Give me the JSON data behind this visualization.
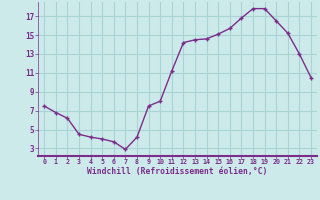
{
  "x": [
    0,
    1,
    2,
    3,
    4,
    5,
    6,
    7,
    8,
    9,
    10,
    11,
    12,
    13,
    14,
    15,
    16,
    17,
    18,
    19,
    20,
    21,
    22,
    23
  ],
  "y": [
    7.5,
    6.8,
    6.2,
    4.5,
    4.2,
    4.0,
    3.7,
    2.9,
    4.2,
    7.5,
    8.0,
    11.2,
    14.2,
    14.5,
    14.6,
    15.1,
    15.7,
    16.8,
    17.8,
    17.8,
    16.5,
    15.2,
    13.0,
    10.5
  ],
  "line_color": "#7B2D8B",
  "marker": "+",
  "bg_color": "#cdeaea",
  "grid_color": "#a8d4d4",
  "xlabel": "Windchill (Refroidissement éolien,°C)",
  "ylabel_ticks": [
    3,
    5,
    7,
    9,
    11,
    13,
    15,
    17
  ],
  "xlim": [
    -0.5,
    23.5
  ],
  "ylim": [
    2.2,
    18.5
  ],
  "xtick_labels": [
    "0",
    "1",
    "2",
    "3",
    "4",
    "5",
    "6",
    "7",
    "8",
    "9",
    "10",
    "11",
    "12",
    "13",
    "14",
    "15",
    "16",
    "17",
    "18",
    "19",
    "20",
    "21",
    "22",
    "23"
  ],
  "line_width": 1.0,
  "marker_size": 3.5,
  "spine_color": "#7B2D8B",
  "tick_color": "#7B2D8B",
  "label_color": "#7B2D8B"
}
